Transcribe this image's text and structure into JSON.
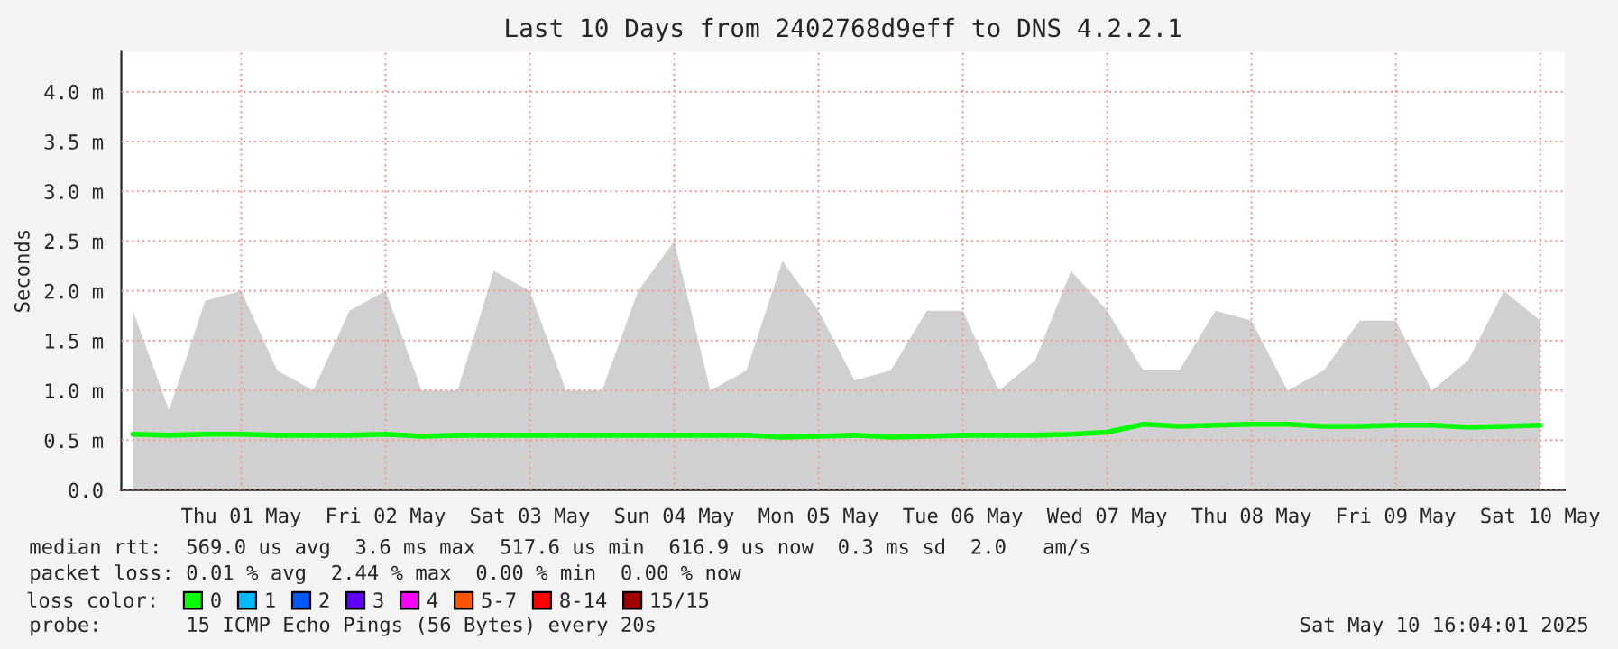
{
  "chart_data": {
    "type": "line",
    "title": "Last 10 Days from 2402768d9eff to DNS 4.2.2.1",
    "ylabel": "Seconds",
    "x": [
      "2025-04-30T18:00",
      "2025-05-01T00:00",
      "2025-05-01T06:00",
      "2025-05-01T12:00",
      "2025-05-01T18:00",
      "2025-05-02T00:00",
      "2025-05-02T06:00",
      "2025-05-02T12:00",
      "2025-05-02T18:00",
      "2025-05-03T00:00",
      "2025-05-03T06:00",
      "2025-05-03T12:00",
      "2025-05-03T18:00",
      "2025-05-04T00:00",
      "2025-05-04T06:00",
      "2025-05-04T12:00",
      "2025-05-04T18:00",
      "2025-05-05T00:00",
      "2025-05-05T06:00",
      "2025-05-05T12:00",
      "2025-05-05T18:00",
      "2025-05-06T00:00",
      "2025-05-06T06:00",
      "2025-05-06T12:00",
      "2025-05-06T18:00",
      "2025-05-07T00:00",
      "2025-05-07T06:00",
      "2025-05-07T12:00",
      "2025-05-07T18:00",
      "2025-05-08T00:00",
      "2025-05-08T06:00",
      "2025-05-08T12:00",
      "2025-05-08T18:00",
      "2025-05-09T00:00",
      "2025-05-09T06:00",
      "2025-05-09T12:00",
      "2025-05-09T18:00",
      "2025-05-10T00:00",
      "2025-05-10T06:00",
      "2025-05-10T12:00"
    ],
    "series": [
      {
        "type": "area",
        "color": "#d0d0d0",
        "values": [
          1.8,
          0.8,
          1.9,
          2.0,
          1.2,
          1.0,
          1.8,
          2.0,
          1.0,
          1.0,
          2.2,
          2.0,
          1.0,
          1.0,
          2.0,
          2.5,
          1.0,
          1.2,
          2.3,
          1.8,
          1.1,
          1.2,
          1.8,
          1.8,
          1.0,
          1.3,
          2.2,
          1.8,
          1.2,
          1.2,
          1.8,
          1.7,
          1.0,
          1.2,
          1.7,
          1.7,
          1.0,
          1.3,
          2.0,
          1.7
        ]
      },
      {
        "name": "0",
        "color": "#00ff00",
        "values": [
          0.56,
          0.55,
          0.56,
          0.56,
          0.55,
          0.55,
          0.55,
          0.56,
          0.54,
          0.55,
          0.55,
          0.55,
          0.55,
          0.55,
          0.55,
          0.55,
          0.55,
          0.55,
          0.53,
          0.54,
          0.55,
          0.53,
          0.54,
          0.55,
          0.55,
          0.55,
          0.56,
          0.58,
          0.66,
          0.64,
          0.65,
          0.66,
          0.66,
          0.64,
          0.64,
          0.65,
          0.65,
          0.63,
          0.64,
          0.65
        ]
      },
      {
        "name": "1",
        "color": "#00b8ff",
        "values": [
          null,
          null,
          null,
          null,
          null,
          null,
          null,
          null,
          null,
          null,
          null,
          null,
          null,
          null,
          null,
          null,
          null,
          null,
          null,
          null,
          null,
          null,
          null,
          null,
          null,
          null,
          null,
          null,
          null,
          null,
          null,
          null,
          null,
          null,
          null,
          null,
          null,
          null,
          null,
          null
        ]
      },
      {
        "name": "2",
        "color": "#0059ff",
        "values": [
          null,
          null,
          null,
          null,
          null,
          null,
          null,
          null,
          null,
          null,
          null,
          null,
          null,
          null,
          null,
          null,
          null,
          null,
          null,
          null,
          null,
          null,
          null,
          null,
          null,
          null,
          null,
          null,
          null,
          null,
          null,
          null,
          null,
          null,
          null,
          null,
          null,
          null,
          null,
          null
        ]
      },
      {
        "name": "3",
        "color": "#5e00ff",
        "values": [
          null,
          null,
          null,
          null,
          null,
          null,
          null,
          null,
          null,
          null,
          null,
          null,
          null,
          null,
          null,
          null,
          null,
          null,
          null,
          null,
          null,
          null,
          null,
          null,
          null,
          null,
          null,
          null,
          null,
          null,
          null,
          null,
          null,
          null,
          null,
          null,
          null,
          null,
          null,
          null
        ]
      },
      {
        "name": "4",
        "color": "#ff00ff",
        "values": [
          null,
          null,
          null,
          null,
          null,
          null,
          null,
          null,
          null,
          null,
          null,
          null,
          null,
          null,
          null,
          null,
          null,
          null,
          null,
          null,
          null,
          null,
          null,
          null,
          null,
          null,
          null,
          null,
          null,
          null,
          null,
          null,
          null,
          null,
          null,
          null,
          null,
          null,
          null,
          null
        ]
      },
      {
        "name": "5-7",
        "color": "#ff5500",
        "values": [
          null,
          null,
          null,
          null,
          null,
          null,
          null,
          null,
          null,
          null,
          null,
          null,
          null,
          null,
          null,
          null,
          null,
          null,
          null,
          null,
          null,
          null,
          null,
          null,
          null,
          null,
          null,
          null,
          null,
          null,
          null,
          null,
          null,
          null,
          null,
          null,
          null,
          null,
          null,
          null
        ]
      },
      {
        "name": "8-14",
        "color": "#ff0000",
        "values": [
          null,
          null,
          null,
          null,
          null,
          null,
          null,
          null,
          null,
          null,
          null,
          null,
          null,
          null,
          null,
          null,
          null,
          null,
          null,
          null,
          null,
          null,
          null,
          null,
          null,
          null,
          null,
          null,
          null,
          null,
          null,
          null,
          null,
          null,
          null,
          null,
          null,
          null,
          null,
          null
        ]
      },
      {
        "name": "15/15",
        "color": "#a10000",
        "values": [
          null,
          null,
          null,
          null,
          null,
          null,
          null,
          null,
          null,
          null,
          null,
          null,
          null,
          null,
          null,
          null,
          null,
          null,
          null,
          null,
          null,
          null,
          null,
          null,
          null,
          null,
          null,
          null,
          null,
          null,
          null,
          null,
          null,
          null,
          null,
          null,
          null,
          null,
          null,
          null
        ]
      }
    ],
    "legend_title": "loss color:",
    "legend": "bottom left",
    "xlim": [
      "2025-04-30T16:04",
      "2025-05-10T16:04"
    ],
    "xticks": [
      {
        "value": "2025-05-01T12:00",
        "label": "Thu 01 May"
      },
      {
        "value": "2025-05-02T12:00",
        "label": "Fri 02 May"
      },
      {
        "value": "2025-05-03T12:00",
        "label": "Sat 03 May"
      },
      {
        "value": "2025-05-04T12:00",
        "label": "Sun 04 May"
      },
      {
        "value": "2025-05-05T12:00",
        "label": "Mon 05 May"
      },
      {
        "value": "2025-05-06T12:00",
        "label": "Tue 06 May"
      },
      {
        "value": "2025-05-07T12:00",
        "label": "Wed 07 May"
      },
      {
        "value": "2025-05-08T12:00",
        "label": "Thu 08 May"
      },
      {
        "value": "2025-05-09T12:00",
        "label": "Fri 09 May"
      },
      {
        "value": "2025-05-10T12:00",
        "label": "Sat 10 May"
      }
    ],
    "ylim": [
      0,
      4.4
    ],
    "yticks": [
      {
        "value": 0,
        "label": "0.0"
      },
      {
        "value": 0.5,
        "label": "0.5 m"
      },
      {
        "value": 1.0,
        "label": "1.0 m"
      },
      {
        "value": 1.5,
        "label": "1.5 m"
      },
      {
        "value": 2.0,
        "label": "2.0 m"
      },
      {
        "value": 2.5,
        "label": "2.5 m"
      },
      {
        "value": 3.0,
        "label": "3.0 m"
      },
      {
        "value": 3.5,
        "label": "3.5 m"
      },
      {
        "value": 4.0,
        "label": "4.0 m"
      }
    ],
    "grid": true,
    "line_style": "solid",
    "marker": "none",
    "annotations": [
      "median rtt:  569.0 us avg  3.6 ms max  517.6 us min  616.9 us now  0.3 ms sd  2.0   am/s",
      "packet loss: 0.01 % avg  2.44 % max  0.00 % min  0.00 % now",
      "probe:       15 ICMP Echo Pings (56 Bytes) every 20s",
      "Sat May 10 16:04:01 2025"
    ]
  }
}
